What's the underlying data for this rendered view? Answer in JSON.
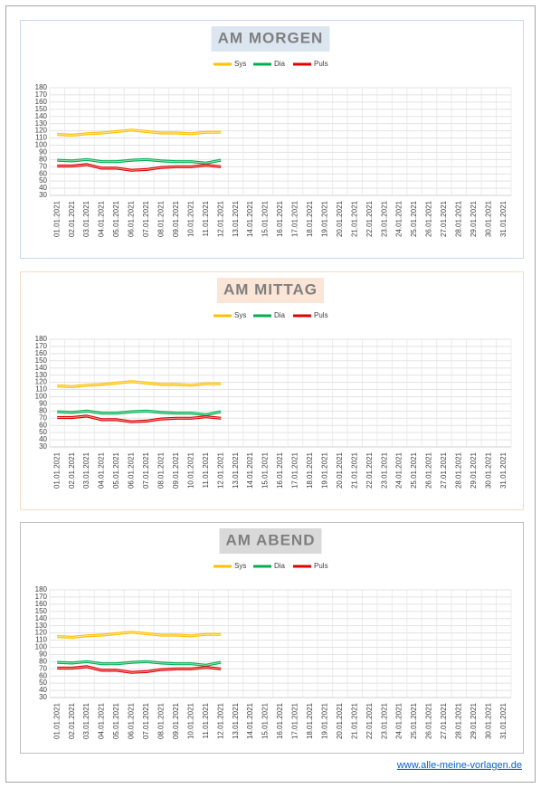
{
  "chart_data": [
    {
      "type": "line",
      "title": "AM MORGEN",
      "title_background": "#dce6f1",
      "frame_color": "#c5d9f1",
      "categories": [
        "01.01.2021",
        "02.01.2021",
        "03.01.2021",
        "04.01.2021",
        "05.01.2021",
        "06.01.2021",
        "07.01.2021",
        "08.01.2021",
        "09.01.2021",
        "10.01.2021",
        "11.01.2021",
        "12.01.2021",
        "13.01.2021",
        "14.01.2021",
        "15.01.2021",
        "16.01.2021",
        "17.01.2021",
        "18.01.2021",
        "19.01.2021",
        "20.01.2021",
        "21.01.2021",
        "22.01.2021",
        "23.01.2021",
        "24.01.2021",
        "25.01.2021",
        "26.01.2021",
        "27.01.2021",
        "28.01.2021",
        "29.01.2021",
        "30.01.2021",
        "31.01.2021"
      ],
      "series": [
        {
          "name": "Sys",
          "color": "#ffc000",
          "values": [
            115,
            114,
            116,
            117,
            119,
            121,
            119,
            117,
            117,
            116,
            118,
            118,
            null,
            null,
            null,
            null,
            null,
            null,
            null,
            null,
            null,
            null,
            null,
            null,
            null,
            null,
            null,
            null,
            null,
            null,
            null
          ]
        },
        {
          "name": "Dia",
          "color": "#00b050",
          "values": [
            79,
            78,
            80,
            77,
            77,
            79,
            80,
            78,
            77,
            77,
            75,
            79,
            null,
            null,
            null,
            null,
            null,
            null,
            null,
            null,
            null,
            null,
            null,
            null,
            null,
            null,
            null,
            null,
            null,
            null,
            null
          ]
        },
        {
          "name": "Puls",
          "color": "#e00000",
          "values": [
            71,
            71,
            73,
            68,
            68,
            65,
            66,
            69,
            70,
            70,
            72,
            70,
            null,
            null,
            null,
            null,
            null,
            null,
            null,
            null,
            null,
            null,
            null,
            null,
            null,
            null,
            null,
            null,
            null,
            null,
            null
          ]
        }
      ],
      "ylim": [
        30,
        180
      ],
      "yticks": [
        30,
        40,
        50,
        60,
        70,
        80,
        90,
        100,
        110,
        120,
        130,
        140,
        150,
        160,
        170,
        180
      ],
      "grid": true,
      "legend": "top"
    },
    {
      "type": "line",
      "title": "AM MITTAG",
      "title_background": "#fbe5d6",
      "frame_color": "#f8dcc6",
      "categories": [
        "01.01.2021",
        "02.01.2021",
        "03.01.2021",
        "04.01.2021",
        "05.01.2021",
        "06.01.2021",
        "07.01.2021",
        "08.01.2021",
        "09.01.2021",
        "10.01.2021",
        "11.01.2021",
        "12.01.2021",
        "13.01.2021",
        "14.01.2021",
        "15.01.2021",
        "16.01.2021",
        "17.01.2021",
        "18.01.2021",
        "19.01.2021",
        "20.01.2021",
        "21.01.2021",
        "22.01.2021",
        "23.01.2021",
        "24.01.2021",
        "25.01.2021",
        "26.01.2021",
        "27.01.2021",
        "28.01.2021",
        "29.01.2021",
        "30.01.2021",
        "31.01.2021"
      ],
      "series": [
        {
          "name": "Sys",
          "color": "#ffc000",
          "values": [
            115,
            114,
            116,
            117,
            119,
            121,
            119,
            117,
            117,
            116,
            118,
            118,
            null,
            null,
            null,
            null,
            null,
            null,
            null,
            null,
            null,
            null,
            null,
            null,
            null,
            null,
            null,
            null,
            null,
            null,
            null
          ]
        },
        {
          "name": "Dia",
          "color": "#00b050",
          "values": [
            79,
            78,
            80,
            77,
            77,
            79,
            80,
            78,
            77,
            77,
            75,
            79,
            null,
            null,
            null,
            null,
            null,
            null,
            null,
            null,
            null,
            null,
            null,
            null,
            null,
            null,
            null,
            null,
            null,
            null,
            null
          ]
        },
        {
          "name": "Puls",
          "color": "#e00000",
          "values": [
            71,
            71,
            73,
            68,
            68,
            65,
            66,
            69,
            70,
            70,
            72,
            70,
            null,
            null,
            null,
            null,
            null,
            null,
            null,
            null,
            null,
            null,
            null,
            null,
            null,
            null,
            null,
            null,
            null,
            null,
            null
          ]
        }
      ],
      "ylim": [
        30,
        180
      ],
      "yticks": [
        30,
        40,
        50,
        60,
        70,
        80,
        90,
        100,
        110,
        120,
        130,
        140,
        150,
        160,
        170,
        180
      ],
      "grid": true,
      "legend": "top"
    },
    {
      "type": "line",
      "title": "AM ABEND",
      "title_background": "#d9d9d9",
      "frame_color": "#bfbfbf",
      "categories": [
        "01.01.2021",
        "02.01.2021",
        "03.01.2021",
        "04.01.2021",
        "05.01.2021",
        "06.01.2021",
        "07.01.2021",
        "08.01.2021",
        "09.01.2021",
        "10.01.2021",
        "11.01.2021",
        "12.01.2021",
        "13.01.2021",
        "14.01.2021",
        "15.01.2021",
        "16.01.2021",
        "17.01.2021",
        "18.01.2021",
        "19.01.2021",
        "20.01.2021",
        "21.01.2021",
        "22.01.2021",
        "23.01.2021",
        "24.01.2021",
        "25.01.2021",
        "26.01.2021",
        "27.01.2021",
        "28.01.2021",
        "29.01.2021",
        "30.01.2021",
        "31.01.2021"
      ],
      "series": [
        {
          "name": "Sys",
          "color": "#ffc000",
          "values": [
            115,
            114,
            116,
            117,
            119,
            121,
            119,
            117,
            117,
            116,
            118,
            118,
            null,
            null,
            null,
            null,
            null,
            null,
            null,
            null,
            null,
            null,
            null,
            null,
            null,
            null,
            null,
            null,
            null,
            null,
            null
          ]
        },
        {
          "name": "Dia",
          "color": "#00b050",
          "values": [
            79,
            78,
            80,
            77,
            77,
            79,
            80,
            78,
            77,
            77,
            75,
            79,
            null,
            null,
            null,
            null,
            null,
            null,
            null,
            null,
            null,
            null,
            null,
            null,
            null,
            null,
            null,
            null,
            null,
            null,
            null
          ]
        },
        {
          "name": "Puls",
          "color": "#e00000",
          "values": [
            71,
            71,
            73,
            68,
            68,
            65,
            66,
            69,
            70,
            70,
            72,
            70,
            null,
            null,
            null,
            null,
            null,
            null,
            null,
            null,
            null,
            null,
            null,
            null,
            null,
            null,
            null,
            null,
            null,
            null,
            null
          ]
        }
      ],
      "ylim": [
        30,
        180
      ],
      "yticks": [
        30,
        40,
        50,
        60,
        70,
        80,
        90,
        100,
        110,
        120,
        130,
        140,
        150,
        160,
        170,
        180
      ],
      "grid": true,
      "legend": "top"
    }
  ],
  "footer": {
    "link": "www.alle-meine-vorlagen.de"
  }
}
